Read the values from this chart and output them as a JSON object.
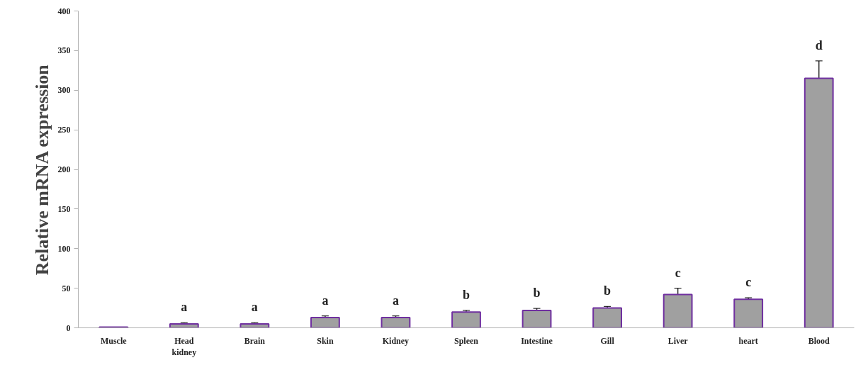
{
  "chart_data": {
    "type": "bar",
    "ylabel": "Relative mRNA expression",
    "categories": [
      "Muscle",
      "Head kidney",
      "Brain",
      "Skin",
      "Kidney",
      "Spleen",
      "Intestine",
      "Gill",
      "Liver",
      "heart",
      "Blood"
    ],
    "series": [
      {
        "color": "#a0a0a0",
        "values": [
          1,
          5,
          5,
          13,
          13,
          20,
          22,
          25,
          42,
          36,
          315
        ],
        "errors": [
          null,
          1.5,
          1.5,
          2,
          2,
          2,
          2.5,
          2,
          8,
          2,
          22
        ]
      }
    ],
    "ylim": [
      0,
      400
    ],
    "yticks": [
      0,
      50,
      100,
      150,
      200,
      250,
      300,
      350,
      400
    ],
    "grid": false,
    "annotations": [
      "a",
      "a",
      "a",
      "a",
      "b",
      "b",
      "b",
      "c",
      "c",
      "d"
    ]
  }
}
